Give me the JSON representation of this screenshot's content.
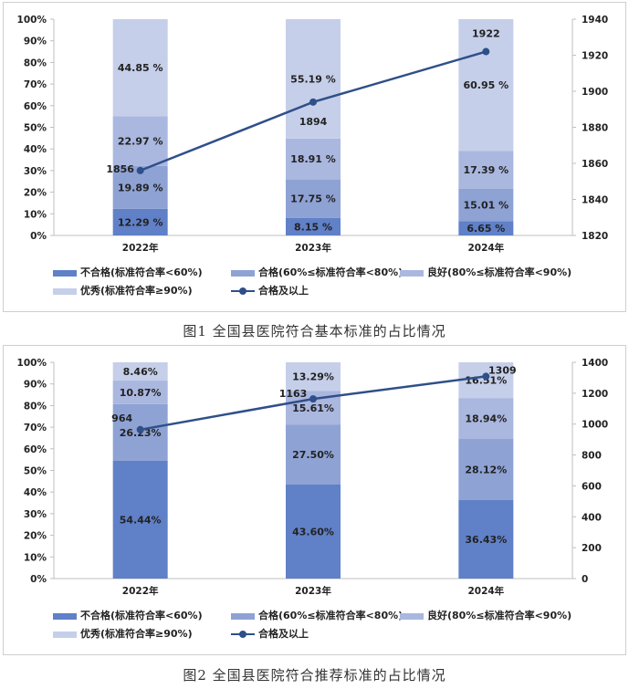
{
  "colors": {
    "fail": "#6080c8",
    "qualified": "#8ea2d4",
    "good": "#aab7df",
    "excellent": "#c6cfe9",
    "line": "#2f4f8a"
  },
  "legend": {
    "fail": "不合格(标准符合率<60%)",
    "qualified": "合格(60%≤标准符合率<80%)",
    "good": "良好(80%≤标准符合率<90%)",
    "excellent": "优秀(标准符合率≥90%)",
    "line": "合格及以上"
  },
  "chart_data": [
    {
      "type": "bar",
      "stacked": true,
      "caption": "图1  全国县医院符合基本标准的占比情况",
      "categories": [
        "2022年",
        "2023年",
        "2024年"
      ],
      "series": [
        {
          "name": "不合格(标准符合率<60%)",
          "values": [
            12.29,
            8.15,
            6.65
          ],
          "labels": [
            "12.29 %",
            "8.15 %",
            "6.65 %"
          ]
        },
        {
          "name": "合格(60%≤标准符合率<80%)",
          "values": [
            19.89,
            17.75,
            15.01
          ],
          "labels": [
            "19.89 %",
            "17.75 %",
            "15.01 %"
          ]
        },
        {
          "name": "良好(80%≤标准符合率<90%)",
          "values": [
            22.97,
            18.91,
            17.39
          ],
          "labels": [
            "22.97 %",
            "18.91 %",
            "17.39 %"
          ]
        },
        {
          "name": "优秀(标准符合率≥90%)",
          "values": [
            44.85,
            55.19,
            60.95
          ],
          "labels": [
            "44.85 %",
            "55.19 %",
            "60.95 %"
          ]
        }
      ],
      "line": {
        "name": "合格及以上",
        "values": [
          1856,
          1894,
          1922
        ]
      },
      "y_left_ticks": [
        "0%",
        "10%",
        "20%",
        "30%",
        "40%",
        "50%",
        "60%",
        "70%",
        "80%",
        "90%",
        "100%"
      ],
      "y_right": {
        "min": 1820,
        "max": 1940,
        "ticks": [
          "1820",
          "1840",
          "1860",
          "1880",
          "1900",
          "1920",
          "1940"
        ]
      }
    },
    {
      "type": "bar",
      "stacked": true,
      "caption": "图2  全国县医院符合推荐标准的占比情况",
      "categories": [
        "2022年",
        "2023年",
        "2024年"
      ],
      "series": [
        {
          "name": "不合格(标准符合率<60%)",
          "values": [
            54.44,
            43.6,
            36.43
          ],
          "labels": [
            "54.44%",
            "43.60%",
            "36.43%"
          ]
        },
        {
          "name": "合格(60%≤标准符合率<80%)",
          "values": [
            26.23,
            27.5,
            28.12
          ],
          "labels": [
            "26.23%",
            "27.50%",
            "28.12%"
          ]
        },
        {
          "name": "良好(80%≤标准符合率<90%)",
          "values": [
            10.87,
            15.61,
            18.94
          ],
          "labels": [
            "10.87%",
            "15.61%",
            "18.94%"
          ]
        },
        {
          "name": "优秀(标准符合率≥90%)",
          "values": [
            8.46,
            13.29,
            16.51
          ],
          "labels": [
            "8.46%",
            "13.29%",
            "16.51%"
          ]
        }
      ],
      "line": {
        "name": "合格及以上",
        "values": [
          964,
          1163,
          1309
        ]
      },
      "y_left_ticks": [
        "0%",
        "10%",
        "20%",
        "30%",
        "40%",
        "50%",
        "60%",
        "70%",
        "80%",
        "90%",
        "100%"
      ],
      "y_right": {
        "min": 0,
        "max": 1400,
        "ticks": [
          "0",
          "200",
          "400",
          "600",
          "800",
          "1000",
          "1200",
          "1400"
        ]
      }
    }
  ]
}
